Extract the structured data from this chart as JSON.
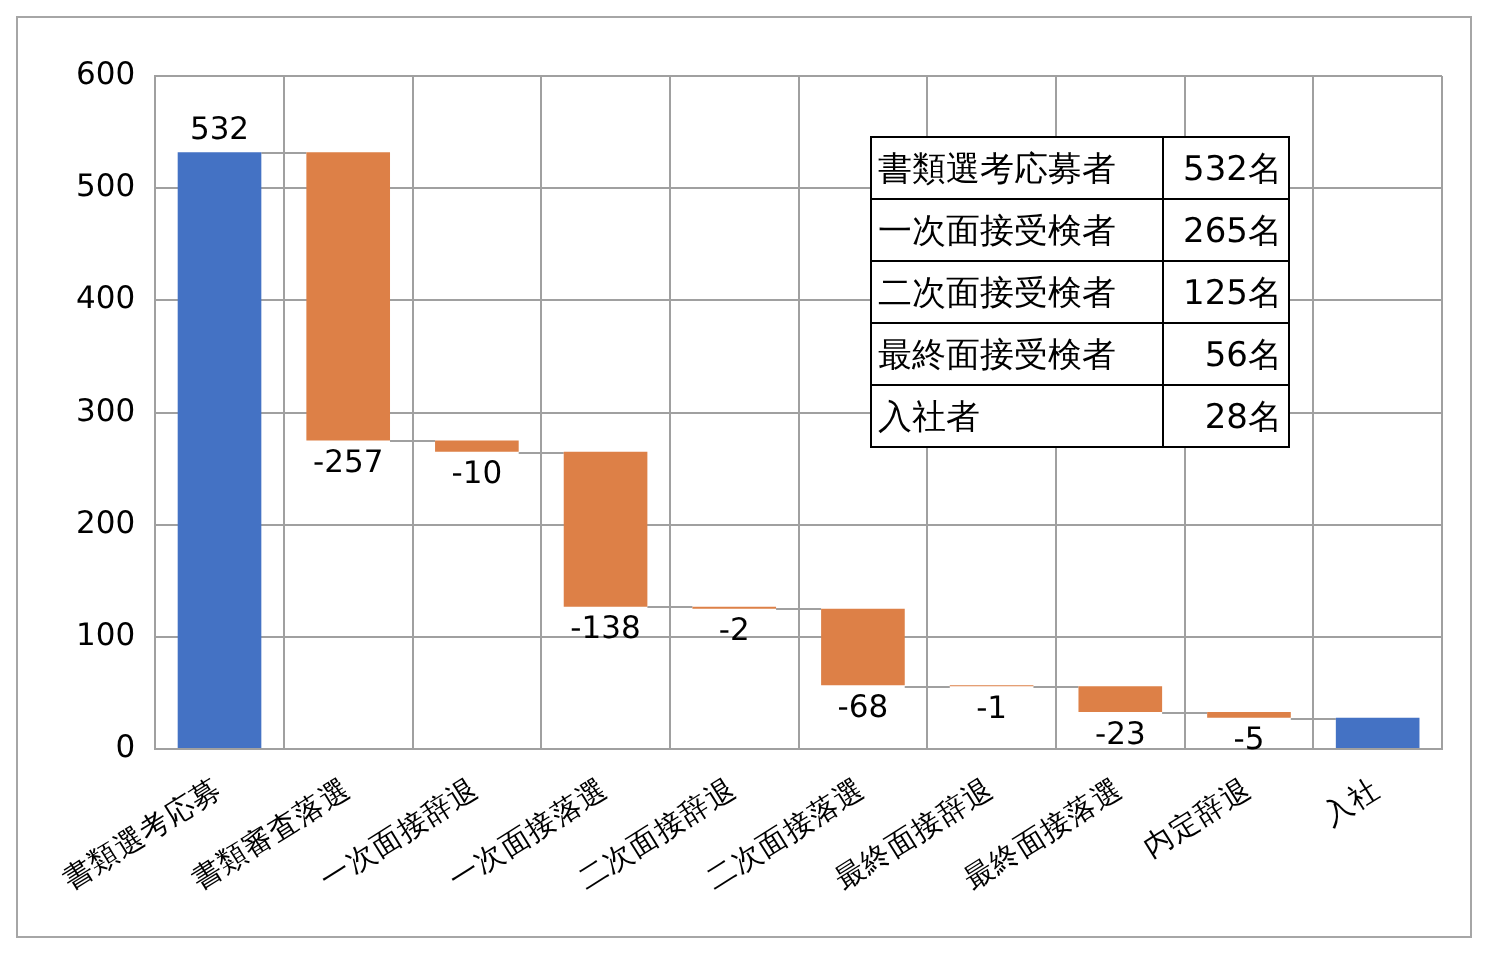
{
  "chart_data": {
    "type": "bar",
    "categories": [
      "書類選考応募",
      "書類審査落選",
      "一次面接辞退",
      "一次面接落選",
      "二次面接辞退",
      "二次面接落選",
      "最終面接辞退",
      "最終面接落選",
      "内定辞退",
      "入社"
    ],
    "values": [
      532,
      -257,
      -10,
      -138,
      -2,
      -68,
      -1,
      -23,
      -5,
      28
    ],
    "base": [
      0,
      532,
      275,
      265,
      127,
      125,
      57,
      56,
      33,
      0
    ],
    "colors": [
      "#4472c4",
      "#dd8047",
      "#dd8047",
      "#dd8047",
      "#dd8047",
      "#dd8047",
      "#dd8047",
      "#dd8047",
      "#dd8047",
      "#4472c4"
    ],
    "value_labels": [
      "532",
      "-257",
      "-10",
      "-138",
      "-2",
      "-68",
      "-1",
      "-23",
      "-5",
      null
    ],
    "ylim": [
      0,
      600
    ],
    "yticks": [
      0,
      100,
      200,
      300,
      400,
      500,
      600
    ],
    "grid": true,
    "annotations": [
      "書類選考応募者",
      "532名",
      "一次面接受検者",
      "265名",
      "二次面接受検者",
      "125名",
      "最終面接受検者",
      "56名",
      "入社者",
      "28名"
    ]
  }
}
